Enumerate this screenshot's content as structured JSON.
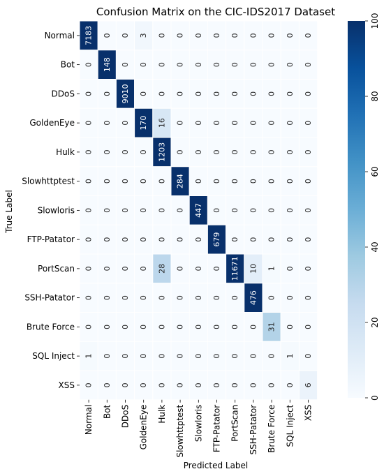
{
  "chart_data": {
    "type": "heatmap",
    "title": "Confusion Matrix on the CIC-IDS2017 Dataset",
    "xlabel": "Predicted Label",
    "ylabel": "True Label",
    "x_categories": [
      "Normal",
      "Bot",
      "DDoS",
      "GoldenEye",
      "Hulk",
      "Slowhttptest",
      "Slowloris",
      "FTP-Patator",
      "PortScan",
      "SSH-Patator",
      "Brute Force",
      "SQL Inject",
      "XSS"
    ],
    "y_categories": [
      "Normal",
      "Bot",
      "DDoS",
      "GoldenEye",
      "Hulk",
      "Slowhttptest",
      "Slowloris",
      "FTP-Patator",
      "PortScan",
      "SSH-Patator",
      "Brute Force",
      "SQL Inject",
      "XSS"
    ],
    "values": [
      [
        7183,
        0,
        0,
        3,
        0,
        0,
        0,
        0,
        0,
        0,
        0,
        0,
        0
      ],
      [
        0,
        148,
        0,
        0,
        0,
        0,
        0,
        0,
        0,
        0,
        0,
        0,
        0
      ],
      [
        0,
        0,
        9010,
        0,
        0,
        0,
        0,
        0,
        0,
        0,
        0,
        0,
        0
      ],
      [
        0,
        0,
        0,
        170,
        16,
        0,
        0,
        0,
        0,
        0,
        0,
        0,
        0
      ],
      [
        0,
        0,
        0,
        0,
        1203,
        0,
        0,
        0,
        0,
        0,
        0,
        0,
        0
      ],
      [
        0,
        0,
        0,
        0,
        0,
        284,
        0,
        0,
        0,
        0,
        0,
        0,
        0
      ],
      [
        0,
        0,
        0,
        0,
        0,
        0,
        447,
        0,
        0,
        0,
        0,
        0,
        0
      ],
      [
        0,
        0,
        0,
        0,
        0,
        0,
        0,
        679,
        0,
        0,
        0,
        0,
        0
      ],
      [
        0,
        0,
        0,
        0,
        28,
        0,
        0,
        0,
        11671,
        10,
        1,
        0,
        0
      ],
      [
        0,
        0,
        0,
        0,
        0,
        0,
        0,
        0,
        0,
        476,
        0,
        0,
        0
      ],
      [
        0,
        0,
        0,
        0,
        0,
        0,
        0,
        0,
        0,
        0,
        31,
        0,
        0
      ],
      [
        1,
        0,
        0,
        0,
        0,
        0,
        0,
        0,
        0,
        0,
        0,
        1,
        0
      ],
      [
        0,
        0,
        0,
        0,
        0,
        0,
        0,
        0,
        0,
        0,
        0,
        0,
        6
      ]
    ],
    "colorbar": {
      "range": [
        0,
        100
      ],
      "ticks": [
        0,
        20,
        40,
        60,
        80,
        100
      ],
      "colormap": "Blues"
    },
    "grid": true
  }
}
